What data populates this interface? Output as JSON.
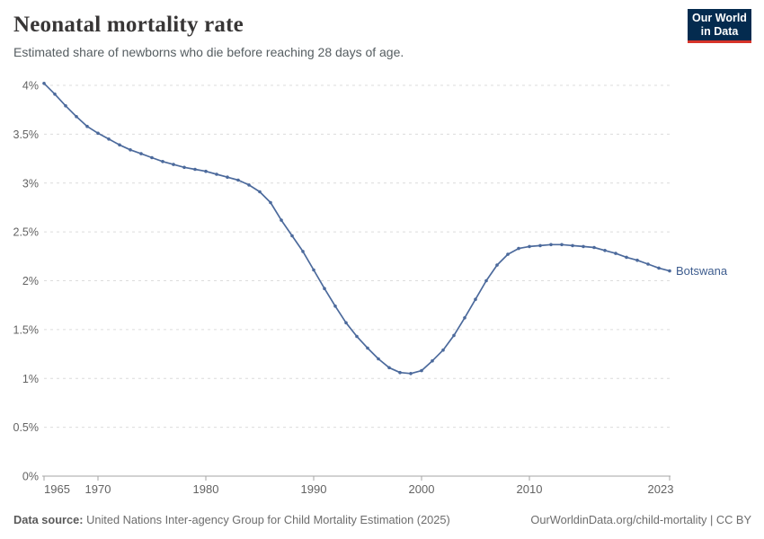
{
  "header": {
    "title": "Neonatal mortality rate",
    "subtitle": "Estimated share of newborns who die before reaching 28 days of age.",
    "logo": {
      "line1": "Our World",
      "line2": "in Data",
      "bg_color": "#042b4f",
      "accent_color": "#d7342a"
    }
  },
  "chart_data": {
    "type": "line",
    "title": "Neonatal mortality rate",
    "subtitle": "Estimated share of newborns who die before reaching 28 days of age.",
    "entity": "Botswana",
    "unit": "%",
    "xlabel": "",
    "ylabel": "",
    "xlim": [
      1965,
      2023
    ],
    "ylim": [
      0,
      4
    ],
    "grid": true,
    "legend_position": "end-of-line-label",
    "marker": "dot",
    "line_color": "#4c6a9c",
    "entity_label_color": "#3d5c8e",
    "grid_color": "#dcdcdc",
    "axis_color": "#a5a5a5",
    "tick_label_color": "#636363",
    "y_ticks": [
      0,
      0.5,
      1,
      1.5,
      2,
      2.5,
      3,
      3.5,
      4
    ],
    "y_tick_labels": [
      "0%",
      "0.5%",
      "1%",
      "1.5%",
      "2%",
      "2.5%",
      "3%",
      "3.5%",
      "4%"
    ],
    "x_ticks": [
      1965,
      1970,
      1980,
      1990,
      2000,
      2010,
      2023
    ],
    "x_tick_labels": [
      "1965",
      "1970",
      "1980",
      "1990",
      "2000",
      "2010",
      "2023"
    ],
    "points": [
      [
        1965,
        4.02
      ],
      [
        1966,
        3.91
      ],
      [
        1967,
        3.79
      ],
      [
        1968,
        3.68
      ],
      [
        1969,
        3.58
      ],
      [
        1970,
        3.51
      ],
      [
        1971,
        3.45
      ],
      [
        1972,
        3.39
      ],
      [
        1973,
        3.34
      ],
      [
        1974,
        3.3
      ],
      [
        1975,
        3.26
      ],
      [
        1976,
        3.22
      ],
      [
        1977,
        3.19
      ],
      [
        1978,
        3.16
      ],
      [
        1979,
        3.14
      ],
      [
        1980,
        3.12
      ],
      [
        1981,
        3.09
      ],
      [
        1982,
        3.06
      ],
      [
        1983,
        3.03
      ],
      [
        1984,
        2.98
      ],
      [
        1985,
        2.91
      ],
      [
        1986,
        2.8
      ],
      [
        1987,
        2.62
      ],
      [
        1988,
        2.46
      ],
      [
        1989,
        2.3
      ],
      [
        1990,
        2.11
      ],
      [
        1991,
        1.92
      ],
      [
        1992,
        1.74
      ],
      [
        1993,
        1.57
      ],
      [
        1994,
        1.43
      ],
      [
        1995,
        1.31
      ],
      [
        1996,
        1.2
      ],
      [
        1997,
        1.11
      ],
      [
        1998,
        1.06
      ],
      [
        1999,
        1.05
      ],
      [
        2000,
        1.08
      ],
      [
        2001,
        1.18
      ],
      [
        2002,
        1.29
      ],
      [
        2003,
        1.44
      ],
      [
        2004,
        1.62
      ],
      [
        2005,
        1.81
      ],
      [
        2006,
        2.0
      ],
      [
        2007,
        2.16
      ],
      [
        2008,
        2.27
      ],
      [
        2009,
        2.33
      ],
      [
        2010,
        2.35
      ],
      [
        2011,
        2.36
      ],
      [
        2012,
        2.37
      ],
      [
        2013,
        2.37
      ],
      [
        2014,
        2.36
      ],
      [
        2015,
        2.35
      ],
      [
        2016,
        2.34
      ],
      [
        2017,
        2.31
      ],
      [
        2018,
        2.28
      ],
      [
        2019,
        2.24
      ],
      [
        2020,
        2.21
      ],
      [
        2021,
        2.17
      ],
      [
        2022,
        2.13
      ],
      [
        2023,
        2.1
      ]
    ]
  },
  "footer": {
    "source_label": "Data source:",
    "source_text": "United Nations Inter-agency Group for Child Mortality Estimation (2025)",
    "credit": "OurWorldinData.org/child-mortality | CC BY"
  }
}
